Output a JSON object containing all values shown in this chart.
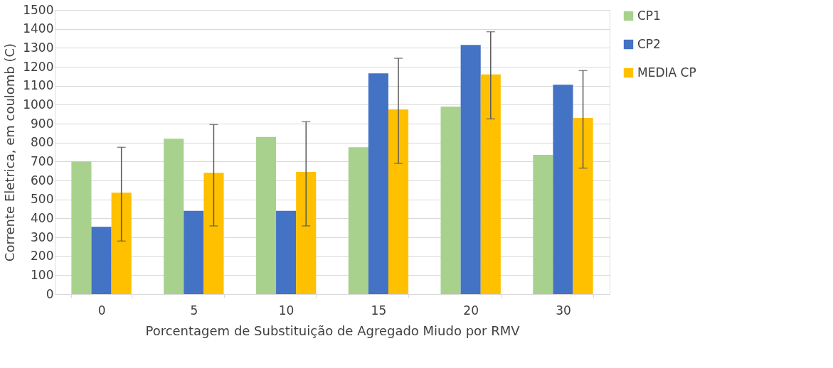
{
  "chart_data": {
    "type": "bar",
    "xlabel": "Porcentagem de Substituição de Agregado Miudo por RMV",
    "ylabel": "Corrente Eletrica, em coulomb (C)",
    "categories": [
      "0",
      "5",
      "10",
      "15",
      "20",
      "30"
    ],
    "series": [
      {
        "name": "CP1",
        "color": "#a9d18e",
        "values": [
          700,
          820,
          830,
          775,
          990,
          735
        ]
      },
      {
        "name": "CP2",
        "color": "#4472c4",
        "values": [
          355,
          440,
          440,
          1165,
          1315,
          1105
        ]
      },
      {
        "name": "MEDIA CP",
        "color": "#ffc000",
        "values": [
          535,
          640,
          645,
          975,
          1160,
          930
        ],
        "errors": [
          [
            280,
            775
          ],
          [
            360,
            895
          ],
          [
            360,
            910
          ],
          [
            690,
            1245
          ],
          [
            925,
            1385
          ],
          [
            665,
            1180
          ]
        ]
      }
    ],
    "ylim": [
      0,
      1500
    ],
    "yticks": [
      0,
      100,
      200,
      300,
      400,
      500,
      600,
      700,
      800,
      900,
      1000,
      1100,
      1200,
      1300,
      1400,
      1500
    ],
    "grid": "y",
    "legend": "right"
  }
}
